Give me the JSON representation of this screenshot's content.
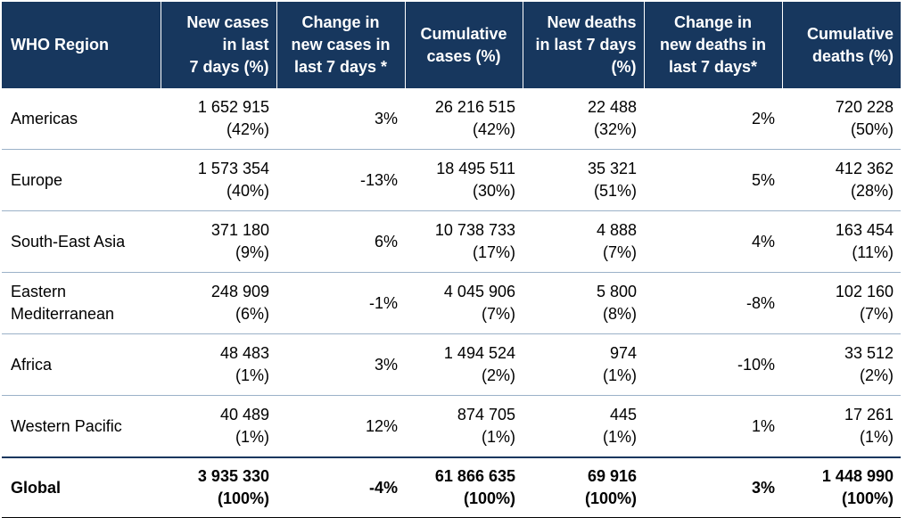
{
  "table": {
    "headers": [
      {
        "lines": [
          "WHO Region"
        ]
      },
      {
        "lines": [
          "New cases",
          "in  last",
          "7 days (%)"
        ]
      },
      {
        "lines": [
          "Change in",
          "new cases in",
          "last 7 days *"
        ]
      },
      {
        "lines": [
          "Cumulative",
          "cases (%)"
        ]
      },
      {
        "lines": [
          "New deaths",
          "in last 7 days",
          "(%)"
        ]
      },
      {
        "lines": [
          "Change in",
          "new deaths in",
          "last 7 days*"
        ]
      },
      {
        "lines": [
          "Cumulative",
          "deaths (%)"
        ]
      }
    ],
    "rows": [
      {
        "region": [
          "Americas"
        ],
        "new_cases": "1 652 915",
        "new_cases_pct": "(42%)",
        "change_cases": "3%",
        "cum_cases": "26 216 515",
        "cum_cases_pct": "(42%)",
        "new_deaths": "22 488",
        "new_deaths_pct": "(32%)",
        "change_deaths": "2%",
        "cum_deaths": "720 228",
        "cum_deaths_pct": "(50%)"
      },
      {
        "region": [
          "Europe"
        ],
        "new_cases": "1 573 354",
        "new_cases_pct": "(40%)",
        "change_cases": "-13%",
        "cum_cases": "18 495 511",
        "cum_cases_pct": "(30%)",
        "new_deaths": "35 321",
        "new_deaths_pct": "(51%)",
        "change_deaths": "5%",
        "cum_deaths": "412 362",
        "cum_deaths_pct": "(28%)"
      },
      {
        "region": [
          "South-East Asia"
        ],
        "new_cases": "371 180",
        "new_cases_pct": "(9%)",
        "change_cases": "6%",
        "cum_cases": "10 738 733",
        "cum_cases_pct": "(17%)",
        "new_deaths": "4 888",
        "new_deaths_pct": "(7%)",
        "change_deaths": "4%",
        "cum_deaths": "163 454",
        "cum_deaths_pct": "(11%)"
      },
      {
        "region": [
          "Eastern",
          "Mediterranean"
        ],
        "new_cases": "248 909",
        "new_cases_pct": "(6%)",
        "change_cases": "-1%",
        "cum_cases": "4 045 906",
        "cum_cases_pct": "(7%)",
        "new_deaths": "5 800",
        "new_deaths_pct": "(8%)",
        "change_deaths": "-8%",
        "cum_deaths": "102 160",
        "cum_deaths_pct": "(7%)"
      },
      {
        "region": [
          "Africa"
        ],
        "new_cases": "48 483",
        "new_cases_pct": "(1%)",
        "change_cases": "3%",
        "cum_cases": "1 494 524",
        "cum_cases_pct": "(2%)",
        "new_deaths": "974",
        "new_deaths_pct": "(1%)",
        "change_deaths": "-10%",
        "cum_deaths": "33 512",
        "cum_deaths_pct": "(2%)"
      },
      {
        "region": [
          "Western Pacific"
        ],
        "new_cases": "40 489",
        "new_cases_pct": "(1%)",
        "change_cases": "12%",
        "cum_cases": "874 705",
        "cum_cases_pct": "(1%)",
        "new_deaths": "445",
        "new_deaths_pct": "(1%)",
        "change_deaths": "1%",
        "cum_deaths": "17 261",
        "cum_deaths_pct": "(1%)"
      }
    ],
    "global": {
      "region": [
        "Global"
      ],
      "new_cases": "3 935 330",
      "new_cases_pct": "(100%)",
      "change_cases": "-4%",
      "cum_cases": "61 866 635",
      "cum_cases_pct": "(100%)",
      "new_deaths": "69 916",
      "new_deaths_pct": "(100%)",
      "change_deaths": "3%",
      "cum_deaths": "1 448 990",
      "cum_deaths_pct": "(100%)"
    }
  },
  "colors": {
    "header_bg": "#17375e",
    "header_text": "#ffffff",
    "row_divider": "#9bb1c8"
  }
}
